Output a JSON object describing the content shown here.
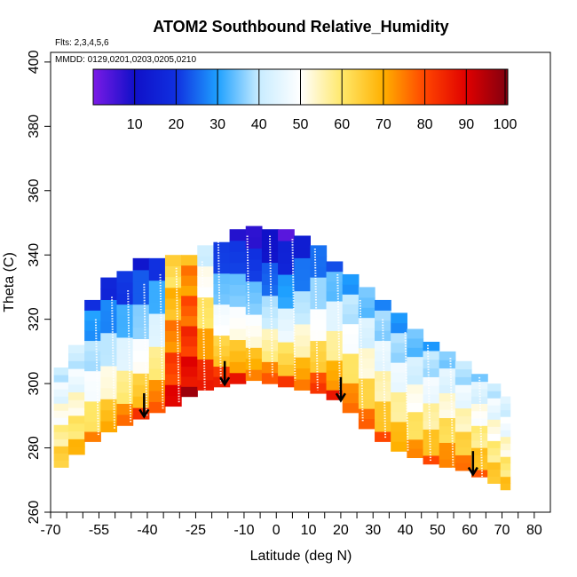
{
  "chart_data": {
    "type": "heatmap",
    "title": "ATOM2 Southbound Relative_Humidity",
    "flights_label": "Flts: 2,3,4,5,6",
    "dates_label": "MMDD: 0129,0201,0203,0205,0210",
    "xlabel": "Latitude (deg N)",
    "ylabel": "Theta (C)",
    "xlim": [
      -70,
      85
    ],
    "ylim": [
      260,
      403
    ],
    "x_major_ticks": [
      -70,
      -55,
      -40,
      -25,
      -10,
      0,
      10,
      20,
      30,
      40,
      50,
      60,
      70,
      80
    ],
    "x_minor_ticks": [
      -65,
      -60,
      -50,
      -45,
      -35,
      -30,
      -20,
      -15,
      -5,
      5,
      15,
      25,
      35,
      45,
      55,
      65,
      75
    ],
    "y_ticks": [
      260,
      280,
      300,
      320,
      340,
      360,
      380,
      400
    ],
    "colorbar": {
      "label_values": [
        10,
        20,
        30,
        40,
        50,
        60,
        70,
        80,
        90,
        100
      ],
      "range": [
        0,
        100
      ],
      "stops": [
        {
          "value": 0,
          "color": "#7b1ae6"
        },
        {
          "value": 10,
          "color": "#1010c8"
        },
        {
          "value": 20,
          "color": "#1030e0"
        },
        {
          "value": 30,
          "color": "#1ea0ff"
        },
        {
          "value": 40,
          "color": "#c8ecff"
        },
        {
          "value": 50,
          "color": "#ffffff"
        },
        {
          "value": 60,
          "color": "#ffe86a"
        },
        {
          "value": 70,
          "color": "#ffb000"
        },
        {
          "value": 80,
          "color": "#ff4500"
        },
        {
          "value": 90,
          "color": "#e00000"
        },
        {
          "value": 100,
          "color": "#800010"
        }
      ]
    },
    "envelope": {
      "lat": [
        -67,
        -62,
        -57,
        -52,
        -47,
        -42,
        -37,
        -32,
        -27,
        -22,
        -17,
        -12,
        -7,
        -2,
        3,
        8,
        13,
        18,
        23,
        28,
        33,
        38,
        43,
        48,
        53,
        58,
        63,
        68,
        71
      ],
      "bottom": [
        274,
        278,
        282,
        285,
        287,
        289,
        291,
        293,
        296,
        298,
        299,
        300,
        301,
        300,
        299,
        298,
        297,
        295,
        291,
        286,
        282,
        279,
        277,
        275,
        274,
        273,
        271,
        269,
        267
      ],
      "top": [
        305,
        312,
        326,
        333,
        335,
        339,
        339,
        340,
        340,
        343,
        344,
        348,
        349,
        348,
        348,
        346,
        343,
        338,
        334,
        330,
        326,
        322,
        317,
        313,
        310,
        307,
        303,
        300,
        296
      ]
    },
    "rh_profile": {
      "lat": [
        -67,
        -62,
        -57,
        -52,
        -47,
        -42,
        -37,
        -32,
        -27,
        -22,
        -17,
        -12,
        -7,
        -2,
        3,
        8,
        13,
        18,
        23,
        28,
        33,
        38,
        43,
        48,
        53,
        58,
        63,
        68,
        71
      ],
      "rh_bottom": [
        70,
        72,
        75,
        80,
        82,
        85,
        88,
        92,
        95,
        95,
        92,
        90,
        85,
        85,
        85,
        85,
        88,
        88,
        85,
        82,
        80,
        78,
        78,
        80,
        82,
        80,
        78,
        72,
        70
      ],
      "rh_top": [
        40,
        38,
        22,
        15,
        15,
        14,
        18,
        60,
        70,
        40,
        15,
        10,
        5,
        4,
        5,
        12,
        20,
        25,
        28,
        30,
        30,
        28,
        30,
        32,
        35,
        35,
        38,
        40,
        40
      ]
    },
    "arrows": [
      {
        "lat": -41,
        "theta": 293
      },
      {
        "lat": -16,
        "theta": 303
      },
      {
        "lat": 20,
        "theta": 298
      },
      {
        "lat": 61,
        "theta": 275
      }
    ],
    "flight_tracks": [
      {
        "lat": -56,
        "theta_max": 320,
        "theta_min": 284
      },
      {
        "lat": -51,
        "theta_max": 327,
        "theta_min": 286
      },
      {
        "lat": -46,
        "theta_max": 329,
        "theta_min": 288
      },
      {
        "lat": -41,
        "theta_max": 331,
        "theta_min": 290
      },
      {
        "lat": -36,
        "theta_max": 334,
        "theta_min": 292
      },
      {
        "lat": -31,
        "theta_max": 336,
        "theta_min": 294
      },
      {
        "lat": -23,
        "theta_max": 338,
        "theta_min": 298
      },
      {
        "lat": -18,
        "theta_max": 345,
        "theta_min": 300
      },
      {
        "lat": -9,
        "theta_max": 346,
        "theta_min": 302
      },
      {
        "lat": -2,
        "theta_max": 346,
        "theta_min": 302
      },
      {
        "lat": 5,
        "theta_max": 345,
        "theta_min": 301
      },
      {
        "lat": 12,
        "theta_max": 342,
        "theta_min": 298
      },
      {
        "lat": 19,
        "theta_max": 334,
        "theta_min": 294
      },
      {
        "lat": 26,
        "theta_max": 326,
        "theta_min": 288
      },
      {
        "lat": 33,
        "theta_max": 320,
        "theta_min": 283
      },
      {
        "lat": 40,
        "theta_max": 316,
        "theta_min": 279
      },
      {
        "lat": 47,
        "theta_max": 312,
        "theta_min": 276
      },
      {
        "lat": 54,
        "theta_max": 308,
        "theta_min": 274
      },
      {
        "lat": 63,
        "theta_max": 302,
        "theta_min": 271
      }
    ]
  }
}
